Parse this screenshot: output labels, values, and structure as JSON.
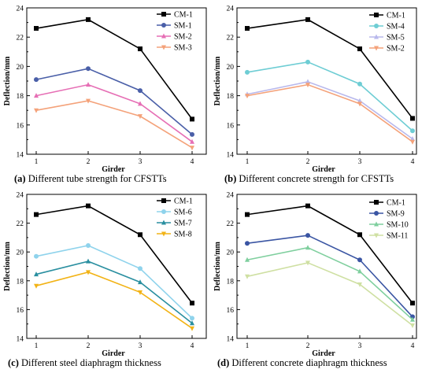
{
  "chart_data": [
    {
      "type": "line",
      "categories": [
        "1",
        "2",
        "3",
        "4"
      ],
      "xlabel": "Girder",
      "ylabel": "Deflection/mm",
      "ylim": [
        14,
        24
      ],
      "yticks": [
        "14",
        "16",
        "18",
        "20",
        "22",
        "24"
      ],
      "legend": "top-right",
      "grid": false,
      "caption_letter": "(a)",
      "caption_text": " Different tube strength for CFSTTs",
      "series": [
        {
          "name": "CM-1",
          "color": "#000000",
          "marker": "square",
          "values": [
            22.6,
            23.2,
            21.2,
            16.4
          ]
        },
        {
          "name": "SM-1",
          "color": "#4a5fa8",
          "marker": "circle",
          "values": [
            19.1,
            19.85,
            18.35,
            15.35
          ]
        },
        {
          "name": "SM-2",
          "color": "#e66fb5",
          "marker": "triangle-up",
          "values": [
            18.0,
            18.75,
            17.45,
            14.85
          ]
        },
        {
          "name": "SM-3",
          "color": "#f4a27a",
          "marker": "triangle-down",
          "values": [
            17.0,
            17.65,
            16.6,
            14.45
          ]
        }
      ]
    },
    {
      "type": "line",
      "categories": [
        "1",
        "2",
        "3",
        "4"
      ],
      "xlabel": "Girder",
      "ylabel": "Deflection/mm",
      "ylim": [
        14,
        24
      ],
      "yticks": [
        "14",
        "16",
        "18",
        "20",
        "22",
        "24"
      ],
      "legend": "top-right",
      "grid": false,
      "caption_letter": "(b)",
      "caption_text": " Different concrete strength for CFSTTs",
      "series": [
        {
          "name": "CM-1",
          "color": "#000000",
          "marker": "square",
          "values": [
            22.6,
            23.2,
            21.2,
            16.45
          ]
        },
        {
          "name": "SM-4",
          "color": "#6ecdd4",
          "marker": "circle",
          "values": [
            19.6,
            20.3,
            18.8,
            15.6
          ]
        },
        {
          "name": "SM-5",
          "color": "#b8b8ec",
          "marker": "triangle-up",
          "values": [
            18.1,
            18.95,
            17.65,
            15.05
          ]
        },
        {
          "name": "SM-2",
          "color": "#f4a27a",
          "marker": "triangle-down",
          "values": [
            18.0,
            18.75,
            17.45,
            14.85
          ]
        }
      ]
    },
    {
      "type": "line",
      "categories": [
        "1",
        "2",
        "3",
        "4"
      ],
      "xlabel": "Girder",
      "ylabel": "Deflection/mm",
      "ylim": [
        14,
        24
      ],
      "yticks": [
        "14",
        "16",
        "18",
        "20",
        "22",
        "24"
      ],
      "legend": "top-right",
      "grid": false,
      "caption_letter": "(c)",
      "caption_text": " Different steel diaphragm thickness",
      "series": [
        {
          "name": "CM-1",
          "color": "#000000",
          "marker": "square",
          "values": [
            22.6,
            23.2,
            21.2,
            16.45
          ]
        },
        {
          "name": "SM-6",
          "color": "#8fd3ec",
          "marker": "circle",
          "values": [
            19.7,
            20.45,
            18.85,
            15.4
          ]
        },
        {
          "name": "SM-7",
          "color": "#2a8fa0",
          "marker": "triangle-up",
          "values": [
            18.45,
            19.35,
            17.9,
            15.05
          ]
        },
        {
          "name": "SM-8",
          "color": "#f2b316",
          "marker": "triangle-down",
          "values": [
            17.65,
            18.6,
            17.2,
            14.7
          ]
        }
      ]
    },
    {
      "type": "line",
      "categories": [
        "1",
        "2",
        "3",
        "4"
      ],
      "xlabel": "Girder",
      "ylabel": "Deflection/mm",
      "ylim": [
        14,
        24
      ],
      "yticks": [
        "14",
        "16",
        "18",
        "20",
        "22",
        "24"
      ],
      "legend": "top-right",
      "grid": false,
      "caption_letter": "(d)",
      "caption_text": " Different concrete diaphragm thickness",
      "series": [
        {
          "name": "CM-1",
          "color": "#000000",
          "marker": "square",
          "values": [
            22.6,
            23.2,
            21.2,
            16.45
          ]
        },
        {
          "name": "SM-9",
          "color": "#3a55a3",
          "marker": "circle",
          "values": [
            20.6,
            21.15,
            19.45,
            15.5
          ]
        },
        {
          "name": "SM-10",
          "color": "#7fcf9e",
          "marker": "triangle-up",
          "values": [
            19.45,
            20.3,
            18.65,
            15.3
          ]
        },
        {
          "name": "SM-11",
          "color": "#cfe0a3",
          "marker": "triangle-down",
          "values": [
            18.3,
            19.25,
            17.75,
            14.9
          ]
        }
      ]
    }
  ]
}
